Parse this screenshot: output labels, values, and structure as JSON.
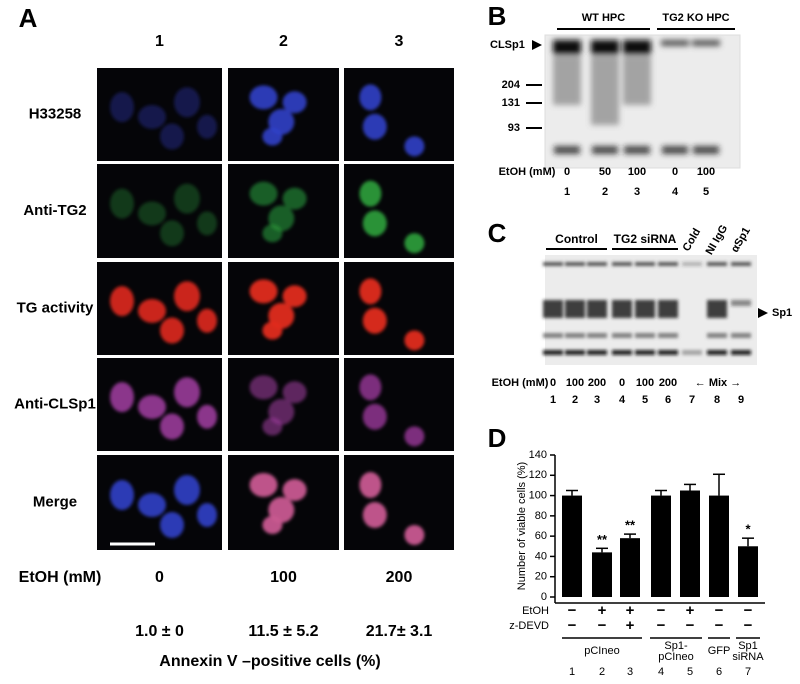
{
  "panel_a": {
    "label": "A",
    "columns": [
      "1",
      "2",
      "3"
    ],
    "rows": [
      "H33258",
      "Anti-TG2",
      "TG activity",
      "Anti-CLSp1",
      "Merge"
    ],
    "etoh_label": "EtOH (mM)",
    "etoh": [
      "0",
      "100",
      "200"
    ],
    "annexin": [
      "1.0 ± 0",
      "11.5 ± 5.2",
      "21.7± 3.1"
    ],
    "annexin_label": "Annexin V –positive cells (%)"
  },
  "panel_b": {
    "label": "B",
    "groups": [
      "WT HPC",
      "TG2 KO HPC"
    ],
    "band_label": "CLSp1",
    "markers": [
      "204",
      "131",
      "93"
    ],
    "etoh_label": "EtOH (mM)",
    "etoh": [
      "0",
      "50",
      "100",
      "0",
      "100"
    ],
    "lanes": [
      "1",
      "2",
      "3",
      "4",
      "5"
    ]
  },
  "panel_c": {
    "label": "C",
    "groups": [
      "Control",
      "TG2 siRNA"
    ],
    "lane_labels": [
      "Cold",
      "NI IgG",
      "αSp1"
    ],
    "band_label": "Sp1",
    "etoh_label": "EtOH (mM)",
    "etoh": [
      "0",
      "100",
      "200",
      "0",
      "100",
      "200"
    ],
    "mix_label": "← Mix →",
    "lanes": [
      "1",
      "2",
      "3",
      "4",
      "5",
      "6",
      "7",
      "8",
      "9"
    ]
  },
  "chart_data": {
    "type": "bar",
    "label": "D",
    "y_label": "Number of viable cells (%)",
    "categories": [
      "1",
      "2",
      "3",
      "4",
      "5",
      "6",
      "7"
    ],
    "values": [
      100,
      44,
      58,
      100,
      105,
      100,
      50
    ],
    "errors": [
      5,
      4,
      4,
      5,
      6,
      21,
      8
    ],
    "color": "#000000",
    "ylim": [
      0,
      140
    ],
    "yticks": [
      0,
      20,
      40,
      60,
      80,
      100,
      120,
      140
    ],
    "significance": [
      {
        "index": 1,
        "label": "**"
      },
      {
        "index": 2,
        "label": "**"
      },
      {
        "index": 6,
        "label": "*"
      }
    ],
    "treatments": [
      {
        "name": "EtOH",
        "signs": [
          "−",
          "+",
          "+",
          "−",
          "+",
          "−",
          "−"
        ]
      },
      {
        "name": "z-DEVD",
        "signs": [
          "−",
          "−",
          "+",
          "−",
          "−",
          "−",
          "−"
        ]
      }
    ],
    "groups": [
      [
        "pCIneo"
      ],
      [
        "Sp1-",
        "pCIneo"
      ],
      [
        "GFP"
      ],
      [
        "Sp1",
        "siRNA"
      ]
    ]
  }
}
